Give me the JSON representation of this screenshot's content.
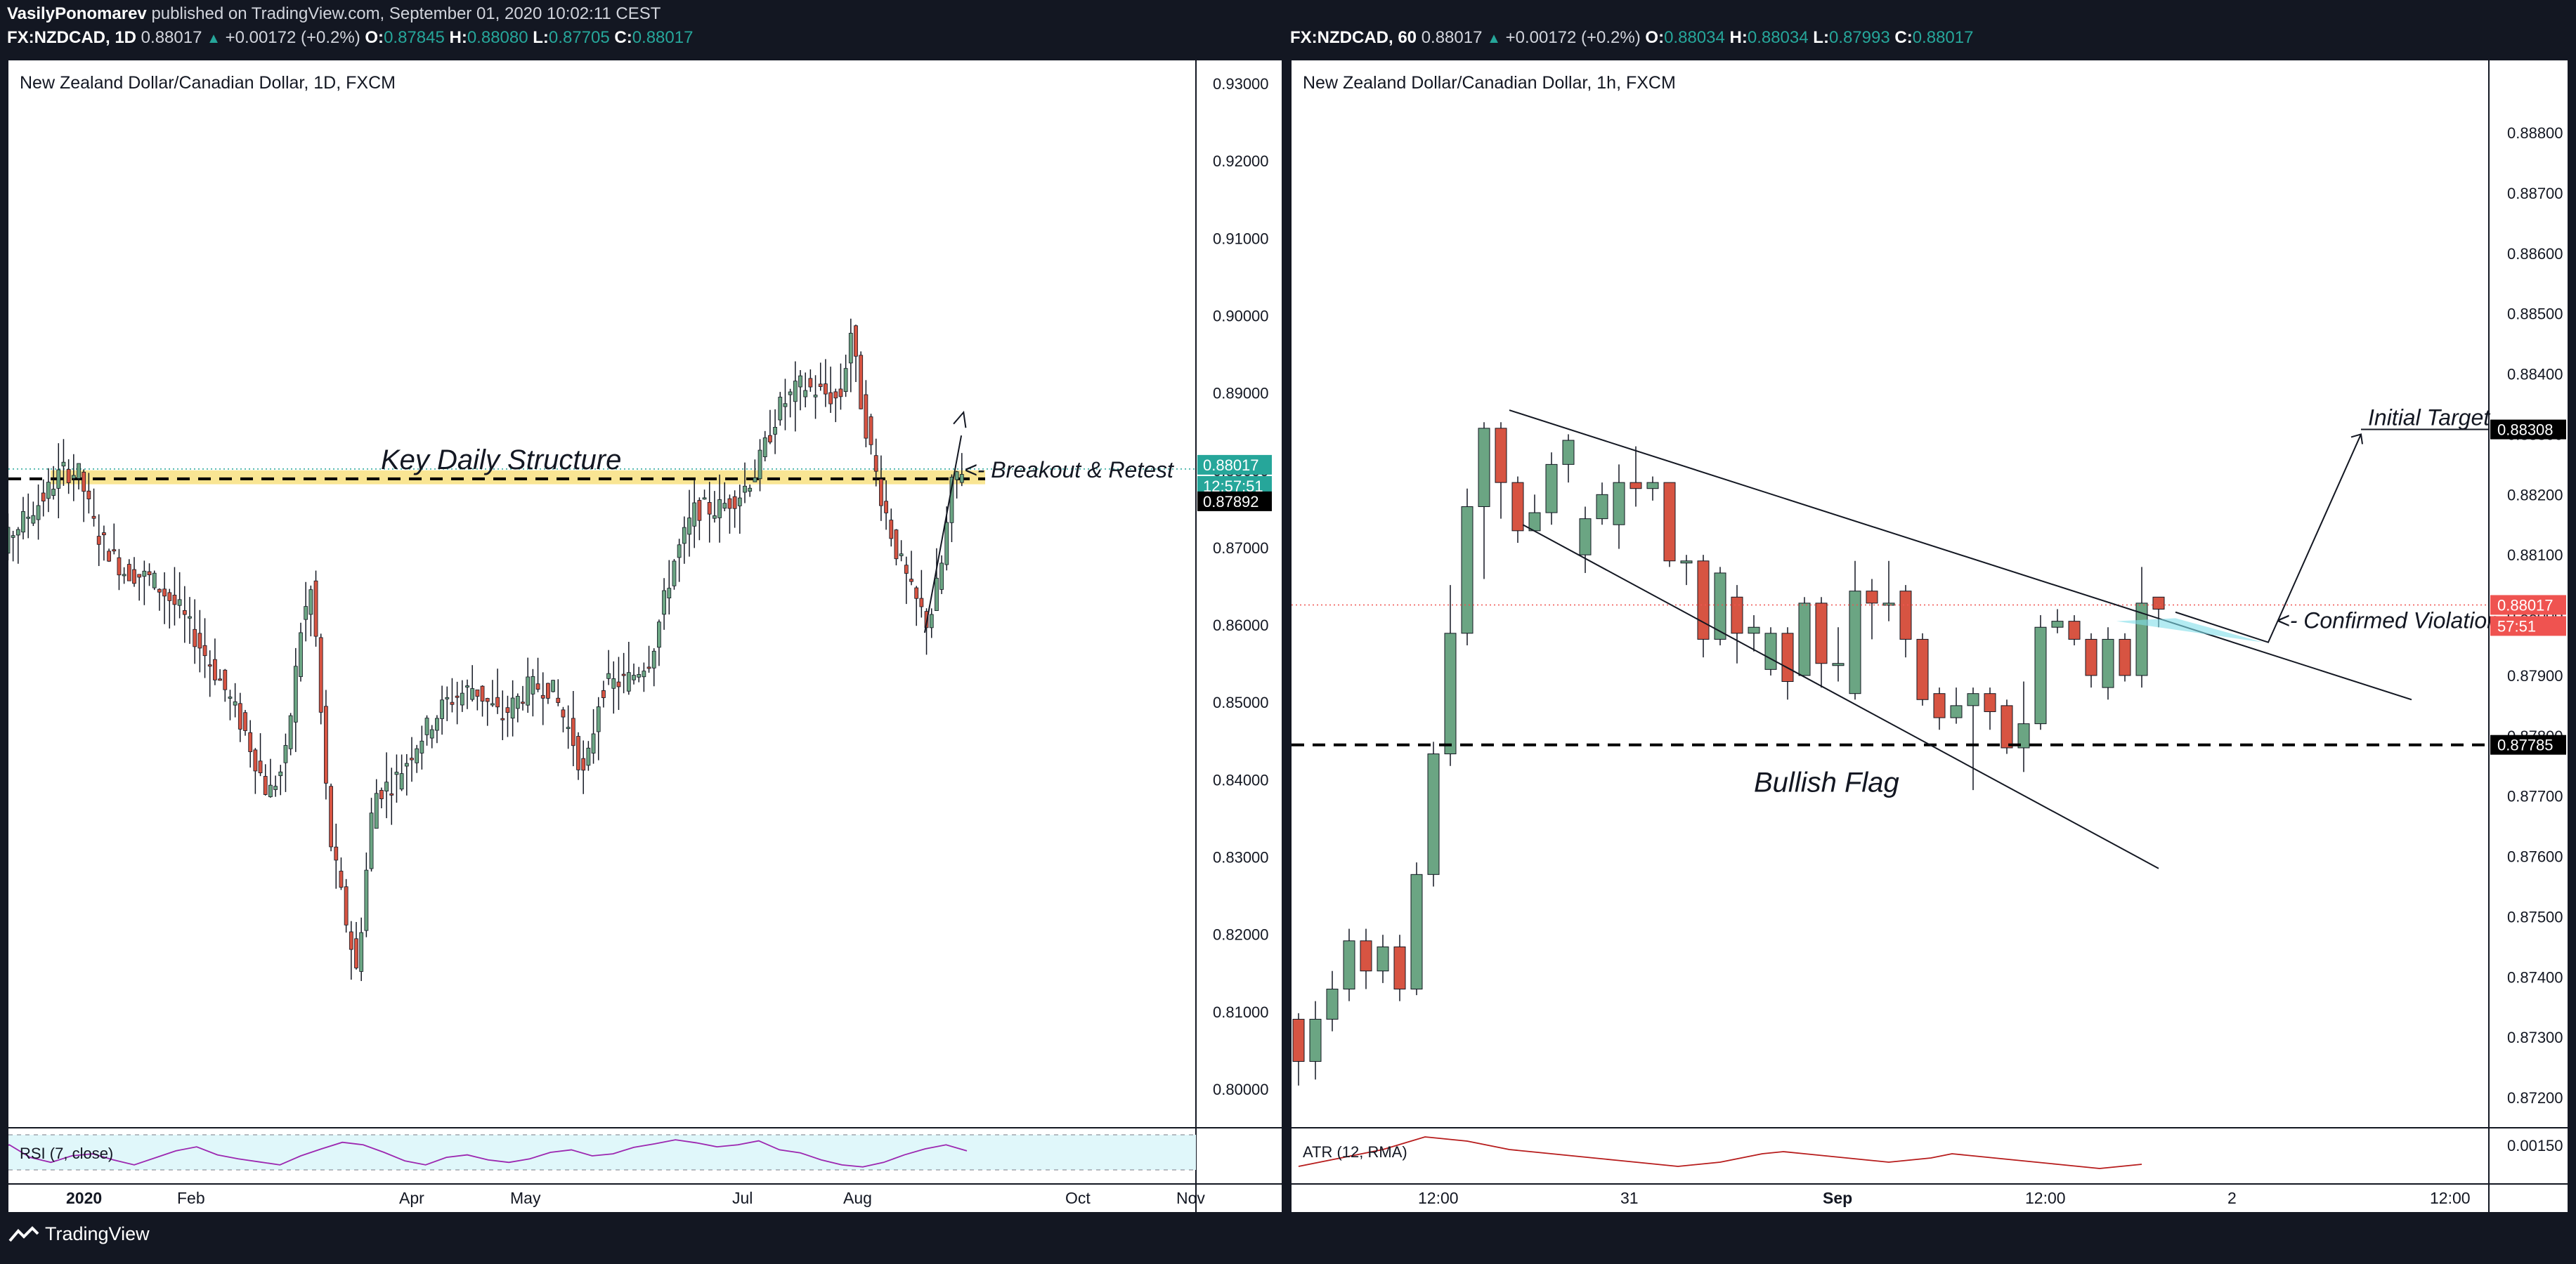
{
  "published": {
    "author": "VasilyPonomarev",
    "text": "published on TradingView.com, September 01, 2020 10:02:11 CEST"
  },
  "left": {
    "symbol": "FX:NZDCAD, 1D",
    "price": "0.88017",
    "change": "+0.00172 (+0.2%)",
    "o": "0.87845",
    "h": "0.88080",
    "l": "0.87705",
    "c": "0.88017",
    "title": "New Zealand Dollar/Canadian Dollar, 1D, FXCM",
    "indicator": "RSI (7, close)",
    "price_tag": "0.88017",
    "countdown": "12:57:51",
    "level_tag": "0.87892",
    "annotations": {
      "structure": "Key Daily Structure",
      "retest": "<- Breakout & Retest"
    }
  },
  "right": {
    "symbol": "FX:NZDCAD, 60",
    "price": "0.88017",
    "change": "+0.00172 (+0.2%)",
    "o": "0.88034",
    "h": "0.88034",
    "l": "0.87993",
    "c": "0.88017",
    "title": "New Zealand Dollar/Canadian Dollar, 1h, FXCM",
    "indicator": "ATR (12, RMA)",
    "price_tag": "0.88017",
    "countdown": "57:51",
    "target_tag": "0.88308",
    "level_tag": "0.87785",
    "annotations": {
      "target": "Initial Target",
      "violation": "<- Confirmed Violation",
      "flag": "Bullish Flag"
    }
  },
  "brand": "TradingView",
  "colors": {
    "up": "#6ba583",
    "down": "#d75442",
    "zone": "#f7dc6f",
    "accent": "#26a69a",
    "background": "#131722"
  },
  "chart_data": [
    {
      "type": "candlestick",
      "title": "New Zealand Dollar/Canadian Dollar, 1D, FXCM",
      "ylim": [
        0.795,
        0.933
      ],
      "yticks": [
        "0.93000",
        "0.92000",
        "0.91000",
        "0.90000",
        "0.89000",
        "0.88000",
        "0.87000",
        "0.86000",
        "0.85000",
        "0.84000",
        "0.83000",
        "0.82000",
        "0.81000",
        "0.80000"
      ],
      "xticks": [
        "2020",
        "Feb",
        "Apr",
        "May",
        "Jul",
        "Aug",
        "Oct",
        "Nov"
      ],
      "x_month_positions": {
        "Dec": -1,
        "2020": 0,
        "Feb": 1,
        "Mar": 2,
        "Apr": 3,
        "May": 4,
        "Jun": 5,
        "Jul": 6,
        "Aug": 7,
        "Sep": 8,
        "Oct": 9,
        "Nov": 10
      },
      "key_level": 0.8789,
      "zone": [
        0.8782,
        0.88
      ],
      "price_line": 0.88017,
      "path_points": [
        [
          -1.0,
          0.866
        ],
        [
          -0.75,
          0.868
        ],
        [
          -0.55,
          0.872
        ],
        [
          -0.3,
          0.876
        ],
        [
          -0.1,
          0.88
        ],
        [
          0.05,
          0.8795
        ],
        [
          0.2,
          0.872
        ],
        [
          0.45,
          0.867
        ],
        [
          0.7,
          0.866
        ],
        [
          0.95,
          0.862
        ],
        [
          1.15,
          0.857
        ],
        [
          1.35,
          0.852
        ],
        [
          1.55,
          0.846
        ],
        [
          1.75,
          0.838
        ],
        [
          1.9,
          0.842
        ],
        [
          2.05,
          0.86
        ],
        [
          2.15,
          0.865
        ],
        [
          2.3,
          0.833
        ],
        [
          2.45,
          0.822
        ],
        [
          2.55,
          0.815
        ],
        [
          2.7,
          0.838
        ],
        [
          2.9,
          0.84
        ],
        [
          3.1,
          0.845
        ],
        [
          3.35,
          0.85
        ],
        [
          3.6,
          0.852
        ],
        [
          3.85,
          0.848
        ],
        [
          4.1,
          0.852
        ],
        [
          4.3,
          0.852
        ],
        [
          4.5,
          0.845
        ],
        [
          4.6,
          0.84
        ],
        [
          4.75,
          0.852
        ],
        [
          5.0,
          0.853
        ],
        [
          5.2,
          0.856
        ],
        [
          5.4,
          0.868
        ],
        [
          5.6,
          0.875
        ],
        [
          5.8,
          0.875
        ],
        [
          6.0,
          0.877
        ],
        [
          6.15,
          0.88
        ],
        [
          6.35,
          0.888
        ],
        [
          6.55,
          0.891
        ],
        [
          6.75,
          0.89
        ],
        [
          6.9,
          0.889
        ],
        [
          7.0,
          0.898
        ],
        [
          7.1,
          0.888
        ],
        [
          7.25,
          0.878
        ],
        [
          7.4,
          0.87
        ],
        [
          7.55,
          0.864
        ],
        [
          7.7,
          0.86
        ],
        [
          7.82,
          0.868
        ],
        [
          7.92,
          0.879
        ],
        [
          8.0,
          0.8802
        ]
      ],
      "rsi": [
        60,
        55,
        70,
        45,
        35,
        48,
        52,
        40,
        30,
        44,
        58,
        66,
        50,
        42,
        36,
        30,
        48,
        62,
        75,
        70,
        55,
        38,
        30,
        45,
        50,
        40,
        35,
        42,
        55,
        60,
        48,
        52,
        65,
        72,
        80,
        74,
        66,
        70,
        78,
        60,
        54,
        40,
        30,
        26,
        35,
        50,
        62,
        70,
        58
      ]
    },
    {
      "type": "candlestick",
      "title": "New Zealand Dollar/Canadian Dollar, 1h, FXCM",
      "ylim": [
        0.8715,
        0.8892
      ],
      "yticks": [
        "0.88800",
        "0.88700",
        "0.88600",
        "0.88500",
        "0.88400",
        "0.88300",
        "0.88200",
        "0.88100",
        "0.88000",
        "0.87900",
        "0.87800",
        "0.87700",
        "0.87600",
        "0.87500",
        "0.87400",
        "0.87300",
        "0.87200"
      ],
      "xticks": [
        "12:00",
        "31",
        "12:00",
        "Sep",
        "12:00",
        "2"
      ],
      "x_tick_positions": {
        "12:00 (30th)": 8.0,
        "31": 20.0,
        "12:00 (31st)": 32.0,
        "Sep": 44.0,
        "12:00 (Sep 1)": 56.0,
        "2": 68.0
      },
      "key_level": 0.87785,
      "target": 0.88308,
      "price_line": 0.88017,
      "candles": [
        [
          0.8733,
          0.8726,
          0.8734,
          0.8722
        ],
        [
          0.8726,
          0.8733,
          0.8736,
          0.8723
        ],
        [
          0.8733,
          0.8738,
          0.8741,
          0.8731
        ],
        [
          0.8738,
          0.8746,
          0.8748,
          0.8736
        ],
        [
          0.8746,
          0.8741,
          0.8748,
          0.8738
        ],
        [
          0.8741,
          0.8745,
          0.8747,
          0.8739
        ],
        [
          0.8745,
          0.8738,
          0.8747,
          0.8736
        ],
        [
          0.8738,
          0.8757,
          0.8759,
          0.8737
        ],
        [
          0.8757,
          0.8777,
          0.8779,
          0.8755
        ],
        [
          0.8777,
          0.8797,
          0.8805,
          0.8775
        ],
        [
          0.8797,
          0.8818,
          0.8821,
          0.8795
        ],
        [
          0.8818,
          0.8831,
          0.8832,
          0.8806
        ],
        [
          0.8831,
          0.8822,
          0.8832,
          0.8816
        ],
        [
          0.8822,
          0.8814,
          0.8823,
          0.8812
        ],
        [
          0.8814,
          0.8817,
          0.882,
          0.8814
        ],
        [
          0.8817,
          0.8825,
          0.8827,
          0.8815
        ],
        [
          0.8825,
          0.8829,
          0.883,
          0.8822
        ],
        [
          0.881,
          0.8816,
          0.8818,
          0.8807
        ],
        [
          0.8816,
          0.882,
          0.8822,
          0.8815
        ],
        [
          0.8815,
          0.8822,
          0.8825,
          0.8811
        ],
        [
          0.8822,
          0.8821,
          0.8828,
          0.8818
        ],
        [
          0.8821,
          0.8822,
          0.8823,
          0.8819
        ],
        [
          0.8822,
          0.8809,
          0.8822,
          0.8808
        ],
        [
          0.8809,
          0.8809,
          0.881,
          0.8805
        ],
        [
          0.8809,
          0.8796,
          0.881,
          0.8793
        ],
        [
          0.8796,
          0.8807,
          0.8808,
          0.8795
        ],
        [
          0.8803,
          0.8797,
          0.8805,
          0.8792
        ],
        [
          0.8797,
          0.8798,
          0.88,
          0.8794
        ],
        [
          0.8791,
          0.8797,
          0.8798,
          0.879
        ],
        [
          0.8797,
          0.8789,
          0.8798,
          0.8786
        ],
        [
          0.879,
          0.8802,
          0.8803,
          0.879
        ],
        [
          0.8802,
          0.8792,
          0.8803,
          0.8788
        ],
        [
          0.8792,
          0.8792,
          0.8798,
          0.8789
        ],
        [
          0.8787,
          0.8804,
          0.8809,
          0.8786
        ],
        [
          0.8804,
          0.8802,
          0.8806,
          0.8796
        ],
        [
          0.8802,
          0.8802,
          0.8809,
          0.8799
        ],
        [
          0.8804,
          0.8796,
          0.8805,
          0.8793
        ],
        [
          0.8796,
          0.8786,
          0.8797,
          0.8785
        ],
        [
          0.8787,
          0.8783,
          0.8788,
          0.8781
        ],
        [
          0.8783,
          0.8785,
          0.8788,
          0.8782
        ],
        [
          0.8785,
          0.8787,
          0.8788,
          0.8771
        ],
        [
          0.8787,
          0.8784,
          0.8788,
          0.8781
        ],
        [
          0.8785,
          0.8778,
          0.8786,
          0.8777
        ],
        [
          0.8778,
          0.8782,
          0.8789,
          0.8774
        ],
        [
          0.8782,
          0.8798,
          0.88,
          0.8781
        ],
        [
          0.8798,
          0.8799,
          0.8801,
          0.8797
        ],
        [
          0.8799,
          0.8796,
          0.88,
          0.8795
        ],
        [
          0.8796,
          0.879,
          0.8797,
          0.8788
        ],
        [
          0.8788,
          0.8796,
          0.8798,
          0.8786
        ],
        [
          0.8796,
          0.879,
          0.8797,
          0.8789
        ],
        [
          0.879,
          0.8802,
          0.8808,
          0.8788
        ],
        [
          0.8803,
          0.8801,
          0.8803,
          0.8798
        ]
      ],
      "atr_series": [
        0.0014,
        0.00142,
        0.00144,
        0.00146,
        0.00148,
        0.00151,
        0.00154,
        0.00153,
        0.00152,
        0.0015,
        0.00148,
        0.00147,
        0.00146,
        0.00145,
        0.00144,
        0.00143,
        0.00142,
        0.00141,
        0.0014,
        0.00141,
        0.00142,
        0.00144,
        0.00146,
        0.00147,
        0.00146,
        0.00145,
        0.00144,
        0.00143,
        0.00142,
        0.00143,
        0.00144,
        0.00146,
        0.00145,
        0.00144,
        0.00143,
        0.00142,
        0.00141,
        0.0014,
        0.00139,
        0.0014,
        0.00141
      ],
      "flag_upper": [
        [
          12.5,
          0.8834
        ],
        [
          66,
          0.8786
        ]
      ],
      "flag_lower": [
        [
          13.3,
          0.8815
        ],
        [
          51,
          0.8758
        ]
      ],
      "target_path": [
        [
          52,
          0.88005
        ],
        [
          57.5,
          0.87955
        ],
        [
          63,
          0.883
        ]
      ]
    }
  ]
}
